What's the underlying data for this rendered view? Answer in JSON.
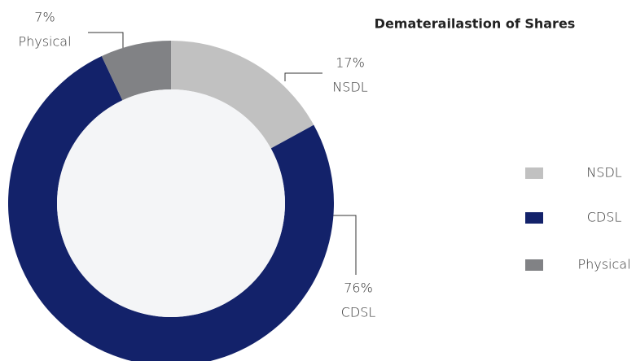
{
  "chart_data": {
    "type": "donut",
    "title": "Dematerailastion of Shares",
    "categories": [
      "NSDL",
      "CDSL",
      "Physical"
    ],
    "values": [
      17,
      76,
      7
    ],
    "value_labels": [
      "17%",
      "76%",
      "7%"
    ],
    "colors": [
      "#c1c1c1",
      "#13226a",
      "#818285"
    ],
    "legend": "right"
  }
}
